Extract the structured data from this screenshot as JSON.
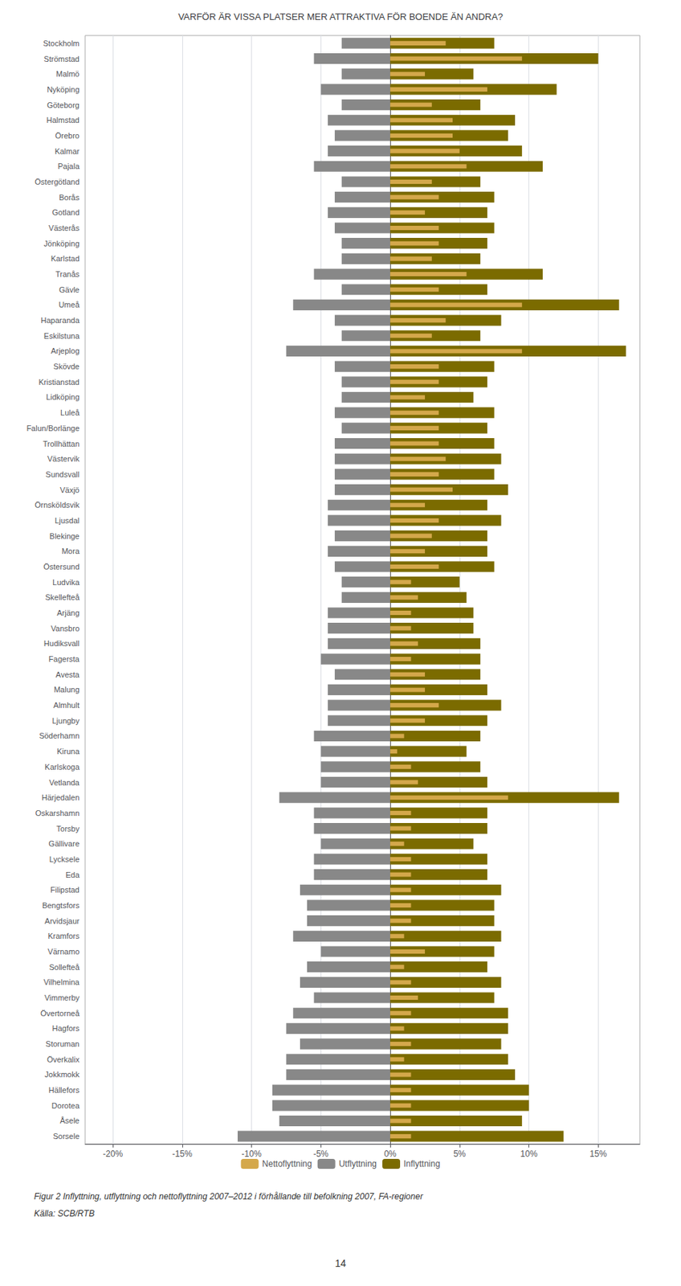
{
  "chart_data": {
    "type": "bar",
    "orientation": "horizontal",
    "title": "VARFÖR ÄR VISSA PLATSER MER ATTRAKTIVA FÖR BOENDE ÄN ANDRA?",
    "annotations": [
      "Figur 2 Inflyttning, utflyttning och nettoflyttning 2007–2012 i förhållande till befolkning 2007, FA-regioner",
      "Källa: SCB/RTB",
      "14"
    ],
    "categories": [
      "Stockholm",
      "Strömstad",
      "Malmö",
      "Nyköping",
      "Göteborg",
      "Halmstad",
      "Örebro",
      "Kalmar",
      "Pajala",
      "Östergötland",
      "Borås",
      "Gotland",
      "Västerås",
      "Jönköping",
      "Karlstad",
      "Tranås",
      "Gävle",
      "Umeå",
      "Haparanda",
      "Eskilstuna",
      "Arjeplog",
      "Skövde",
      "Kristianstad",
      "Lidköping",
      "Luleå",
      "Falun/Borlänge",
      "Trollhättan",
      "Västervik",
      "Sundsvall",
      "Växjö",
      "Örnsköldsvik",
      "Ljusdal",
      "Blekinge",
      "Mora",
      "Östersund",
      "Ludvika",
      "Skellefteå",
      "Arjäng",
      "Vansbro",
      "Hudiksvall",
      "Fagersta",
      "Avesta",
      "Malung",
      "Almhult",
      "Ljungby",
      "Söderhamn",
      "Kiruna",
      "Karlskoga",
      "Vetlanda",
      "Härjedalen",
      "Oskarshamn",
      "Torsby",
      "Gällivare",
      "Lycksele",
      "Eda",
      "Filipstad",
      "Bengtsfors",
      "Arvidsjaur",
      "Kramfors",
      "Värnamo",
      "Sollefteå",
      "Vilhelmina",
      "Vimmerby",
      "Övertorneå",
      "Hagfors",
      "Storuman",
      "Överkalix",
      "Jokkmokk",
      "Hällefors",
      "Dorotea",
      "Åsele",
      "Sorsele"
    ],
    "series": [
      {
        "name": "Nettoflyttning",
        "color": "#D4A84B",
        "values": [
          4.0,
          9.5,
          2.5,
          7.0,
          3.0,
          4.5,
          4.5,
          5.0,
          5.5,
          3.0,
          3.5,
          2.5,
          3.5,
          3.5,
          3.0,
          5.5,
          3.5,
          9.5,
          4.0,
          3.0,
          9.5,
          3.5,
          3.5,
          2.5,
          3.5,
          3.5,
          3.5,
          4.0,
          3.5,
          4.5,
          2.5,
          3.5,
          3.0,
          2.5,
          3.5,
          1.5,
          2.0,
          1.5,
          1.5,
          2.0,
          1.5,
          2.5,
          2.5,
          3.5,
          2.5,
          1.0,
          0.5,
          1.5,
          2.0,
          8.5,
          1.5,
          1.5,
          1.0,
          1.5,
          1.5,
          1.5,
          1.5,
          1.5,
          1.0,
          2.5,
          1.0,
          1.5,
          2.0,
          1.5,
          1.0,
          1.5,
          1.0,
          1.5,
          1.5,
          1.5,
          1.5,
          1.5
        ]
      },
      {
        "name": "Utflyttning",
        "color": "#888888",
        "values": [
          -3.5,
          -5.5,
          -3.5,
          -5.0,
          -3.5,
          -4.5,
          -4.0,
          -4.5,
          -5.5,
          -3.5,
          -4.0,
          -4.5,
          -4.0,
          -3.5,
          -3.5,
          -5.5,
          -3.5,
          -7.0,
          -4.0,
          -3.5,
          -7.5,
          -4.0,
          -3.5,
          -3.5,
          -4.0,
          -3.5,
          -4.0,
          -4.0,
          -4.0,
          -4.0,
          -4.5,
          -4.5,
          -4.0,
          -4.5,
          -4.0,
          -3.5,
          -3.5,
          -4.5,
          -4.5,
          -4.5,
          -5.0,
          -4.0,
          -4.5,
          -4.5,
          -4.5,
          -5.5,
          -5.0,
          -5.0,
          -5.0,
          -8.0,
          -5.5,
          -5.5,
          -5.0,
          -5.5,
          -5.5,
          -6.5,
          -6.0,
          -6.0,
          -7.0,
          -5.0,
          -6.0,
          -6.5,
          -5.5,
          -7.0,
          -7.5,
          -6.5,
          -7.5,
          -7.5,
          -8.5,
          -8.5,
          -8.0,
          -11.0
        ]
      },
      {
        "name": "Inflyttning",
        "color": "#7B6B00",
        "values": [
          7.5,
          15.0,
          6.0,
          12.0,
          6.5,
          9.0,
          8.5,
          9.5,
          11.0,
          6.5,
          7.5,
          7.0,
          7.5,
          7.0,
          6.5,
          11.0,
          7.0,
          16.5,
          8.0,
          6.5,
          17.0,
          7.5,
          7.0,
          6.0,
          7.5,
          7.0,
          7.5,
          8.0,
          7.5,
          8.5,
          7.0,
          8.0,
          7.0,
          7.0,
          7.5,
          5.0,
          5.5,
          6.0,
          6.0,
          6.5,
          6.5,
          6.5,
          7.0,
          8.0,
          7.0,
          6.5,
          5.5,
          6.5,
          7.0,
          16.5,
          7.0,
          7.0,
          6.0,
          7.0,
          7.0,
          8.0,
          7.5,
          7.5,
          8.0,
          7.5,
          7.0,
          8.0,
          7.5,
          8.5,
          8.5,
          8.0,
          8.5,
          9.0,
          10.0,
          10.0,
          9.5,
          12.5
        ]
      }
    ],
    "xlim": [
      -22,
      18
    ],
    "xticks": [
      {
        "value": -20,
        "label": "-20%"
      },
      {
        "value": -15,
        "label": "-15%"
      },
      {
        "value": -10,
        "label": "-10%"
      },
      {
        "value": -5,
        "label": "-5%"
      },
      {
        "value": 0,
        "label": "0%"
      },
      {
        "value": 5,
        "label": "5%"
      },
      {
        "value": 10,
        "label": "10%"
      },
      {
        "value": 15,
        "label": "15%"
      }
    ],
    "grid": true,
    "legend": "bottom"
  }
}
